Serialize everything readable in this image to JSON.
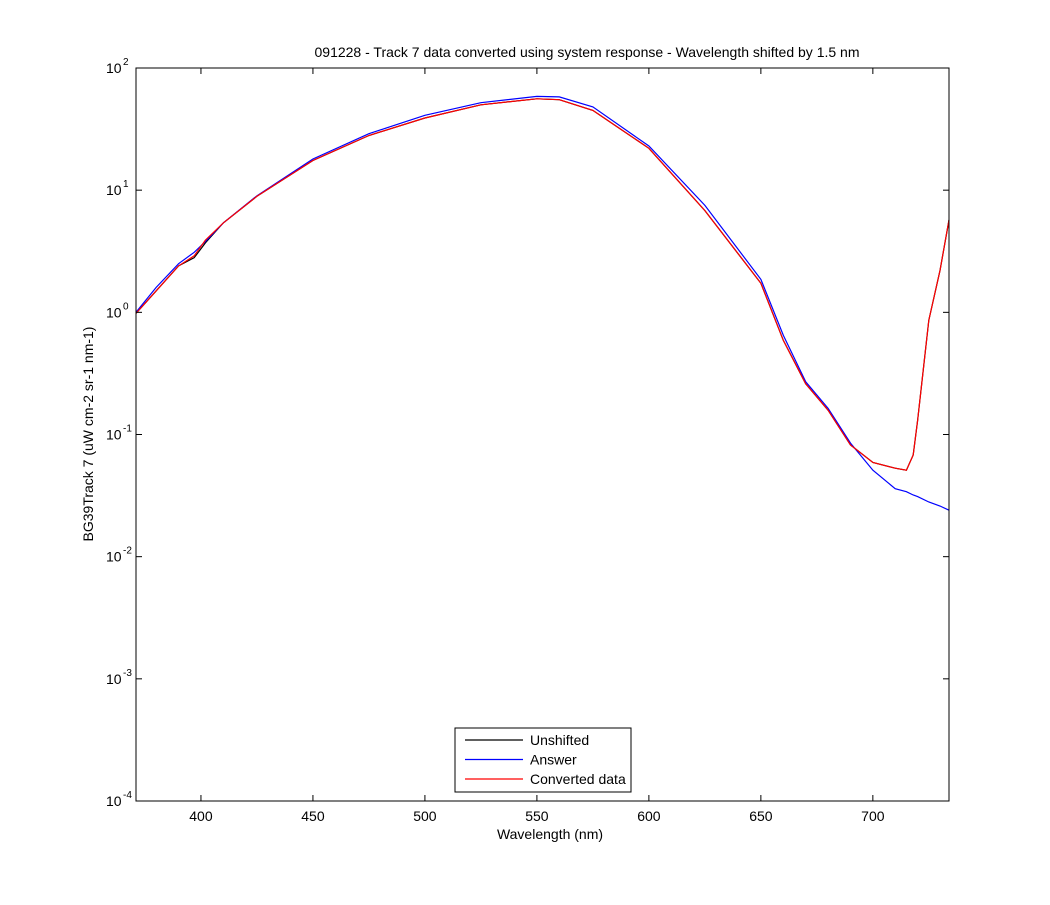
{
  "chart_data": {
    "type": "line",
    "title": "091228 - Track 7 data converted using system response - Wavelength shifted by 1.5 nm",
    "x_label": "Wavelength (nm)",
    "y_label": "BG39Track 7 (uW cm-2 sr-1 nm-1)",
    "log_y": true,
    "legend": "bottom",
    "x": [
      371,
      380,
      390,
      397,
      402,
      410,
      425,
      450,
      475,
      500,
      525,
      550,
      560,
      575,
      600,
      625,
      650,
      660,
      670,
      680,
      690,
      700,
      710,
      715,
      718,
      720,
      725,
      730,
      734
    ],
    "series": [
      {
        "name": "Unshifted",
        "color": "#000000",
        "values": [
          0.98,
          1.5,
          2.4,
          2.8,
          3.7,
          5.4,
          8.9,
          17.5,
          28,
          39,
          50,
          56,
          55,
          45,
          22,
          6.8,
          1.73,
          0.59,
          0.26,
          0.158,
          0.082,
          0.059,
          0.053,
          0.051,
          0.068,
          0.13,
          0.86,
          2.2,
          5.7
        ]
      },
      {
        "name": "Answer",
        "color": "#0000ff",
        "values": [
          1.0,
          1.6,
          2.5,
          3.1,
          3.8,
          5.4,
          9.0,
          18,
          29,
          41,
          52,
          58.5,
          58,
          48,
          23,
          7.5,
          1.86,
          0.65,
          0.27,
          0.164,
          0.085,
          0.051,
          0.036,
          0.034,
          0.032,
          0.031,
          0.028,
          0.026,
          0.024
        ]
      },
      {
        "name": "Converted data",
        "color": "#ff0000",
        "values": [
          0.98,
          1.5,
          2.4,
          2.9,
          3.9,
          5.4,
          8.9,
          17.5,
          28,
          39,
          50,
          56,
          55,
          45,
          22,
          6.8,
          1.73,
          0.59,
          0.26,
          0.158,
          0.082,
          0.059,
          0.053,
          0.051,
          0.068,
          0.13,
          0.86,
          2.2,
          5.7
        ]
      }
    ],
    "xlim": [
      371,
      734
    ],
    "xticks": [
      400,
      450,
      500,
      550,
      600,
      650,
      700
    ],
    "ylim": [
      0.0001,
      100
    ],
    "yticks": [
      {
        "value": 0.0001,
        "label": "10",
        "exponent": "-4"
      },
      {
        "value": 0.001,
        "label": "10",
        "exponent": "-3"
      },
      {
        "value": 0.01,
        "label": "10",
        "exponent": "-2"
      },
      {
        "value": 0.1,
        "label": "10",
        "exponent": "-1"
      },
      {
        "value": 1,
        "label": "10",
        "exponent": "0"
      },
      {
        "value": 10,
        "label": "10",
        "exponent": "1"
      },
      {
        "value": 100,
        "label": "10",
        "exponent": "2"
      }
    ]
  }
}
